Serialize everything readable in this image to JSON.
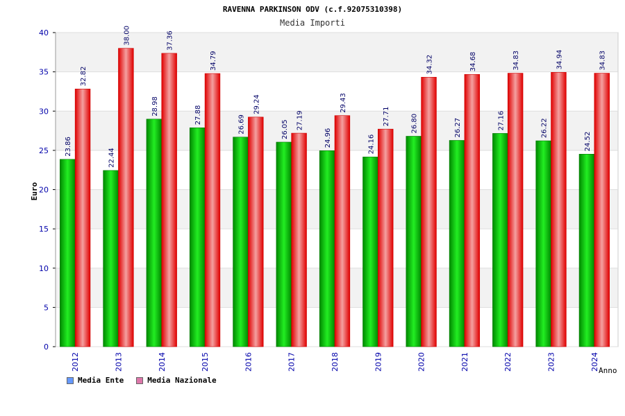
{
  "chart_data": {
    "type": "bar",
    "title": "RAVENNA PARKINSON ODV (c.f.92075310398)",
    "subtitle": "Media Importi",
    "xlabel": "Anno",
    "ylabel": "Euro",
    "ylim": [
      0,
      40
    ],
    "yticks": [
      0,
      5,
      10,
      15,
      20,
      25,
      30,
      35,
      40
    ],
    "grid": true,
    "legend_position": "bottom-left",
    "categories": [
      "2012",
      "2013",
      "2014",
      "2015",
      "2016",
      "2017",
      "2018",
      "2019",
      "2020",
      "2021",
      "2022",
      "2023",
      "2024"
    ],
    "series": [
      {
        "name": "Media Ente",
        "color": "#00cc00",
        "swatch_color": "#6699ff",
        "values": [
          23.86,
          22.44,
          28.98,
          27.88,
          26.69,
          26.05,
          24.96,
          24.16,
          26.8,
          26.27,
          27.16,
          26.22,
          24.52
        ],
        "labels": [
          "23.86",
          "22.44",
          "28.98",
          "27.88",
          "26.69",
          "26.05",
          "24.96",
          "24.16",
          "26.80",
          "26.27",
          "27.16",
          "26.22",
          "24.52"
        ]
      },
      {
        "name": "Media Nazionale",
        "color": "#ee1111",
        "swatch_color": "#dd77aa",
        "values": [
          32.82,
          38.0,
          37.36,
          34.79,
          29.24,
          27.19,
          29.43,
          27.71,
          34.32,
          34.68,
          34.83,
          34.94,
          34.83
        ],
        "labels": [
          "32.82",
          "38.00",
          "37.36",
          "34.79",
          "29.24",
          "27.19",
          "29.43",
          "27.71",
          "34.32",
          "34.68",
          "34.83",
          "34.94",
          "34.83"
        ]
      }
    ]
  }
}
